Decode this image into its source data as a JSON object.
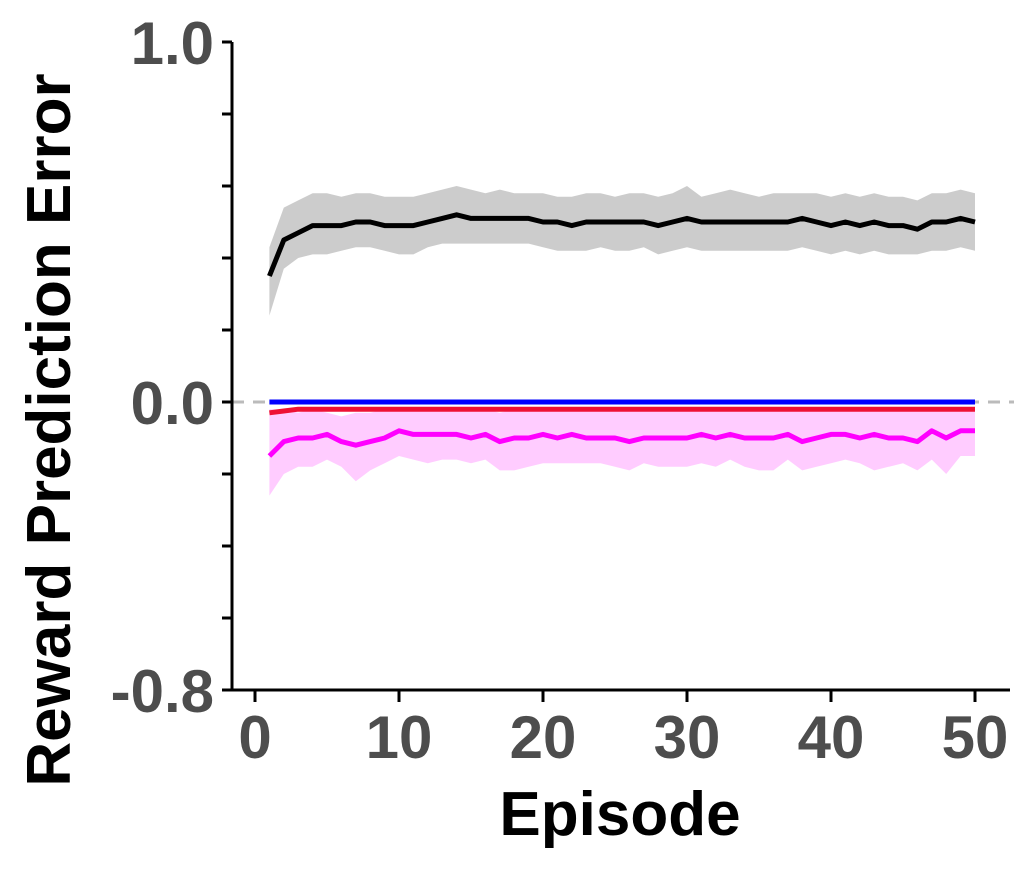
{
  "chart_data": {
    "type": "line",
    "title": "",
    "xlabel": "Episode",
    "ylabel": "Reward Prediction Error",
    "xlim": [
      -1,
      51
    ],
    "ylim": [
      -0.8,
      1.0
    ],
    "x_ticks": [
      0,
      10,
      20,
      30,
      40,
      50
    ],
    "x_tick_labels": [
      "0",
      "10",
      "20",
      "30",
      "40",
      "50"
    ],
    "y_ticks": [
      -0.8,
      0.0,
      1.0
    ],
    "y_tick_labels": [
      "-0.8",
      "0.0",
      "1.0"
    ],
    "y_minor_ticks": [
      -0.6,
      -0.4,
      -0.2,
      0.2,
      0.4,
      0.6,
      0.8
    ],
    "reference_line": {
      "y": 0.0,
      "style": "dashed",
      "color": "#bbbbbb"
    },
    "grid": false,
    "legend": "none",
    "x": [
      1,
      2,
      3,
      4,
      5,
      6,
      7,
      8,
      9,
      10,
      11,
      12,
      13,
      14,
      15,
      16,
      17,
      18,
      19,
      20,
      21,
      22,
      23,
      24,
      25,
      26,
      27,
      28,
      29,
      30,
      31,
      32,
      33,
      34,
      35,
      36,
      37,
      38,
      39,
      40,
      41,
      42,
      43,
      44,
      45,
      46,
      47,
      48,
      49,
      50
    ],
    "series": [
      {
        "color": "#000000",
        "band_color": "#cccccc",
        "values": [
          0.35,
          0.45,
          0.47,
          0.49,
          0.49,
          0.49,
          0.5,
          0.5,
          0.49,
          0.49,
          0.49,
          0.5,
          0.51,
          0.52,
          0.51,
          0.51,
          0.51,
          0.51,
          0.51,
          0.5,
          0.5,
          0.49,
          0.5,
          0.5,
          0.5,
          0.5,
          0.5,
          0.49,
          0.5,
          0.51,
          0.5,
          0.5,
          0.5,
          0.5,
          0.5,
          0.5,
          0.5,
          0.51,
          0.5,
          0.49,
          0.5,
          0.49,
          0.5,
          0.49,
          0.49,
          0.48,
          0.5,
          0.5,
          0.51,
          0.5
        ],
        "lower": [
          0.24,
          0.37,
          0.4,
          0.41,
          0.41,
          0.42,
          0.43,
          0.43,
          0.42,
          0.41,
          0.41,
          0.43,
          0.44,
          0.44,
          0.44,
          0.44,
          0.44,
          0.44,
          0.44,
          0.43,
          0.42,
          0.42,
          0.42,
          0.43,
          0.42,
          0.42,
          0.43,
          0.41,
          0.42,
          0.43,
          0.42,
          0.42,
          0.42,
          0.42,
          0.42,
          0.42,
          0.42,
          0.43,
          0.42,
          0.41,
          0.42,
          0.41,
          0.42,
          0.41,
          0.41,
          0.41,
          0.42,
          0.42,
          0.43,
          0.42
        ],
        "upper": [
          0.43,
          0.54,
          0.56,
          0.58,
          0.58,
          0.57,
          0.58,
          0.58,
          0.57,
          0.57,
          0.57,
          0.58,
          0.59,
          0.6,
          0.59,
          0.58,
          0.59,
          0.58,
          0.58,
          0.58,
          0.57,
          0.57,
          0.58,
          0.58,
          0.57,
          0.58,
          0.58,
          0.57,
          0.58,
          0.6,
          0.57,
          0.58,
          0.59,
          0.58,
          0.57,
          0.58,
          0.58,
          0.58,
          0.58,
          0.57,
          0.58,
          0.57,
          0.58,
          0.57,
          0.57,
          0.56,
          0.58,
          0.58,
          0.59,
          0.58
        ]
      },
      {
        "color": "#0000ff",
        "values": [
          0.0,
          0.0,
          0.0,
          0.0,
          0.0,
          0.0,
          0.0,
          0.0,
          0.0,
          0.0,
          0.0,
          0.0,
          0.0,
          0.0,
          0.0,
          0.0,
          0.0,
          0.0,
          0.0,
          0.0,
          0.0,
          0.0,
          0.0,
          0.0,
          0.0,
          0.0,
          0.0,
          0.0,
          0.0,
          0.0,
          0.0,
          0.0,
          0.0,
          0.0,
          0.0,
          0.0,
          0.0,
          0.0,
          0.0,
          0.0,
          0.0,
          0.0,
          0.0,
          0.0,
          0.0,
          0.0,
          0.0,
          0.0,
          0.0,
          0.0
        ]
      },
      {
        "color": "#ee1133",
        "values": [
          -0.03,
          -0.025,
          -0.02,
          -0.02,
          -0.02,
          -0.02,
          -0.02,
          -0.02,
          -0.02,
          -0.02,
          -0.02,
          -0.02,
          -0.02,
          -0.02,
          -0.02,
          -0.02,
          -0.02,
          -0.02,
          -0.02,
          -0.02,
          -0.02,
          -0.02,
          -0.02,
          -0.02,
          -0.02,
          -0.02,
          -0.02,
          -0.02,
          -0.02,
          -0.02,
          -0.02,
          -0.02,
          -0.02,
          -0.02,
          -0.02,
          -0.02,
          -0.02,
          -0.02,
          -0.02,
          -0.02,
          -0.02,
          -0.02,
          -0.02,
          -0.02,
          -0.02,
          -0.02,
          -0.02,
          -0.02,
          -0.02,
          -0.02
        ]
      },
      {
        "color": "#ff00ff",
        "band_color": "#ffccff",
        "values": [
          -0.15,
          -0.11,
          -0.1,
          -0.1,
          -0.09,
          -0.11,
          -0.12,
          -0.11,
          -0.1,
          -0.08,
          -0.09,
          -0.09,
          -0.09,
          -0.09,
          -0.1,
          -0.09,
          -0.11,
          -0.1,
          -0.1,
          -0.09,
          -0.1,
          -0.09,
          -0.1,
          -0.1,
          -0.1,
          -0.11,
          -0.1,
          -0.1,
          -0.1,
          -0.1,
          -0.09,
          -0.1,
          -0.09,
          -0.1,
          -0.1,
          -0.1,
          -0.09,
          -0.11,
          -0.1,
          -0.09,
          -0.09,
          -0.1,
          -0.09,
          -0.1,
          -0.1,
          -0.11,
          -0.08,
          -0.1,
          -0.08,
          -0.08
        ],
        "lower": [
          -0.26,
          -0.2,
          -0.18,
          -0.18,
          -0.16,
          -0.18,
          -0.22,
          -0.19,
          -0.17,
          -0.15,
          -0.16,
          -0.17,
          -0.16,
          -0.16,
          -0.17,
          -0.16,
          -0.19,
          -0.19,
          -0.18,
          -0.17,
          -0.17,
          -0.17,
          -0.17,
          -0.17,
          -0.18,
          -0.19,
          -0.17,
          -0.18,
          -0.18,
          -0.18,
          -0.17,
          -0.18,
          -0.16,
          -0.18,
          -0.19,
          -0.19,
          -0.16,
          -0.19,
          -0.18,
          -0.17,
          -0.16,
          -0.17,
          -0.19,
          -0.18,
          -0.17,
          -0.19,
          -0.16,
          -0.2,
          -0.15,
          -0.15
        ],
        "upper": [
          -0.02,
          -0.02,
          -0.03,
          -0.02,
          -0.03,
          -0.04,
          -0.03,
          -0.03,
          -0.02,
          -0.02,
          -0.02,
          -0.02,
          -0.02,
          -0.02,
          -0.02,
          -0.02,
          -0.03,
          -0.02,
          -0.02,
          -0.02,
          -0.02,
          -0.02,
          -0.02,
          -0.02,
          -0.02,
          -0.02,
          -0.02,
          -0.02,
          -0.02,
          -0.02,
          -0.02,
          -0.02,
          -0.02,
          -0.02,
          -0.02,
          -0.02,
          -0.02,
          -0.02,
          -0.02,
          -0.02,
          -0.02,
          -0.02,
          -0.02,
          -0.02,
          -0.02,
          -0.02,
          -0.02,
          -0.02,
          -0.02,
          -0.02
        ]
      }
    ]
  }
}
